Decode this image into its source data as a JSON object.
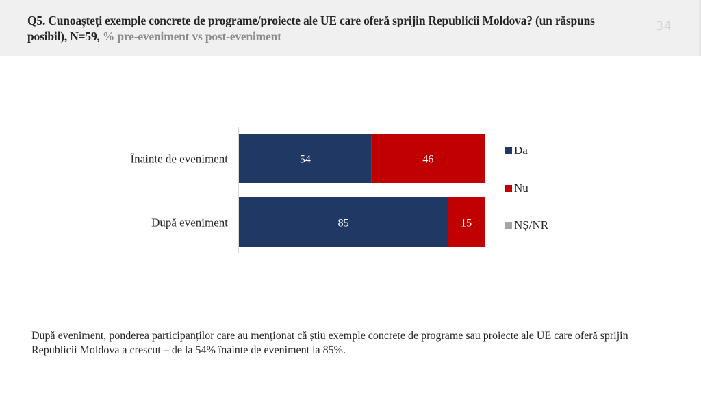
{
  "header": {
    "title_main": "Q5. Cunoașteți exemple concrete de programe/proiecte ale UE care oferă sprijin Republicii Moldova? (un răspuns posibil), N=59,",
    "title_sub": "% pre-eveniment vs post-eveniment",
    "slide_number": "34"
  },
  "chart_data": {
    "type": "bar",
    "orientation": "horizontal",
    "stacked": true,
    "categories": [
      "Înainte de eveniment",
      "După eveniment"
    ],
    "series": [
      {
        "name": "Da",
        "color": "#1f3864",
        "values": [
          54,
          85
        ]
      },
      {
        "name": "Nu",
        "color": "#c00000",
        "values": [
          46,
          15
        ]
      },
      {
        "name": "NȘ/NR",
        "color": "#a6a6a6",
        "values": [
          0,
          0
        ]
      }
    ],
    "xlim": [
      0,
      100
    ],
    "unit": "%",
    "legend_position": "right",
    "grid": false,
    "title": "",
    "xlabel": "",
    "ylabel": ""
  },
  "note": "După eveniment, ponderea participanților care au menționat că știu exemple concrete de programe sau proiecte ale UE care oferă sprijin Republicii Moldova a crescut – de la 54% înainte de eveniment la 85%."
}
